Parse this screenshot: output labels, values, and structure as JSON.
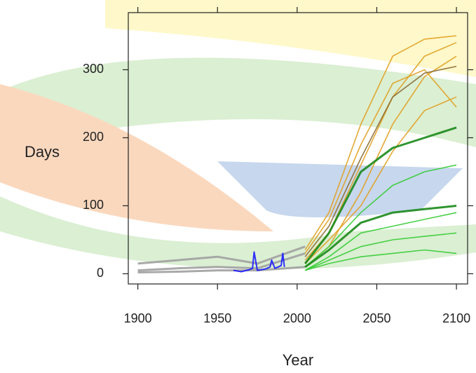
{
  "chart_data": {
    "type": "line",
    "x_label": "Year",
    "y_label": "Days",
    "xlim": [
      1894,
      2107
    ],
    "ylim": [
      -15,
      384
    ],
    "xticks": [
      1900,
      1950,
      2000,
      2050,
      2100
    ],
    "yticks": [
      0,
      100,
      200,
      300
    ],
    "series": [
      {
        "color": "#a0a0a0",
        "x": [
          1900,
          1925,
          1950,
          1975,
          2005
        ],
        "values": [
          15,
          20,
          25,
          15,
          40
        ]
      },
      {
        "color": "#a0a0a0",
        "x": [
          1900,
          1925,
          1950,
          1975,
          2005
        ],
        "values": [
          5,
          8,
          10,
          8,
          30
        ]
      },
      {
        "color": "#a0a0a0",
        "x": [
          1900,
          1925,
          1950,
          1975,
          2005
        ],
        "values": [
          2,
          3,
          5,
          5,
          10
        ]
      },
      {
        "color": "#1a1aff",
        "x": [
          1960,
          1965,
          1970,
          1972,
          1973,
          1975,
          1980,
          1983,
          1984,
          1986,
          1990,
          1991,
          1992
        ],
        "values": [
          5,
          3,
          6,
          8,
          32,
          5,
          7,
          10,
          20,
          8,
          12,
          30,
          10
        ]
      },
      {
        "color": "#e0a020",
        "x": [
          2005,
          2020,
          2040,
          2060,
          2080,
          2100
        ],
        "values": [
          35,
          90,
          220,
          320,
          345,
          350
        ]
      },
      {
        "color": "#e0a020",
        "x": [
          2005,
          2020,
          2040,
          2060,
          2080,
          2100
        ],
        "values": [
          20,
          60,
          160,
          260,
          320,
          340
        ]
      },
      {
        "color": "#e0a020",
        "x": [
          2005,
          2020,
          2040,
          2060,
          2080,
          2100
        ],
        "values": [
          10,
          40,
          120,
          220,
          290,
          320
        ]
      },
      {
        "color": "#e0a020",
        "x": [
          2005,
          2020,
          2040,
          2060,
          2080,
          2100
        ],
        "values": [
          30,
          80,
          190,
          280,
          300,
          245
        ]
      },
      {
        "color": "#e0a020",
        "x": [
          2005,
          2020,
          2040,
          2060,
          2080,
          2100
        ],
        "values": [
          15,
          50,
          100,
          180,
          240,
          260
        ]
      },
      {
        "color": "#8a6a30",
        "x": [
          2005,
          2020,
          2040,
          2060,
          2080,
          2100
        ],
        "values": [
          25,
          70,
          170,
          260,
          295,
          305
        ]
      },
      {
        "color": "#33cc33",
        "x": [
          2005,
          2020,
          2040,
          2060,
          2080,
          2100
        ],
        "values": [
          10,
          40,
          90,
          130,
          150,
          160
        ]
      },
      {
        "color": "#33cc33",
        "x": [
          2005,
          2020,
          2040,
          2060,
          2080,
          2100
        ],
        "values": [
          5,
          25,
          60,
          70,
          80,
          90
        ]
      },
      {
        "color": "#33cc33",
        "x": [
          2005,
          2020,
          2040,
          2060,
          2080,
          2100
        ],
        "values": [
          5,
          20,
          40,
          50,
          55,
          60
        ]
      },
      {
        "color": "#33cc33",
        "x": [
          2005,
          2020,
          2040,
          2060,
          2080,
          2100
        ],
        "values": [
          5,
          15,
          25,
          30,
          35,
          30
        ]
      },
      {
        "color": "#1a8a1a",
        "x": [
          2005,
          2020,
          2040,
          2060,
          2080,
          2100
        ],
        "values": [
          15,
          60,
          150,
          185,
          200,
          215
        ]
      },
      {
        "color": "#1a8a1a",
        "x": [
          2005,
          2020,
          2040,
          2060,
          2080,
          2100
        ],
        "values": [
          10,
          35,
          75,
          90,
          95,
          100
        ]
      }
    ]
  }
}
